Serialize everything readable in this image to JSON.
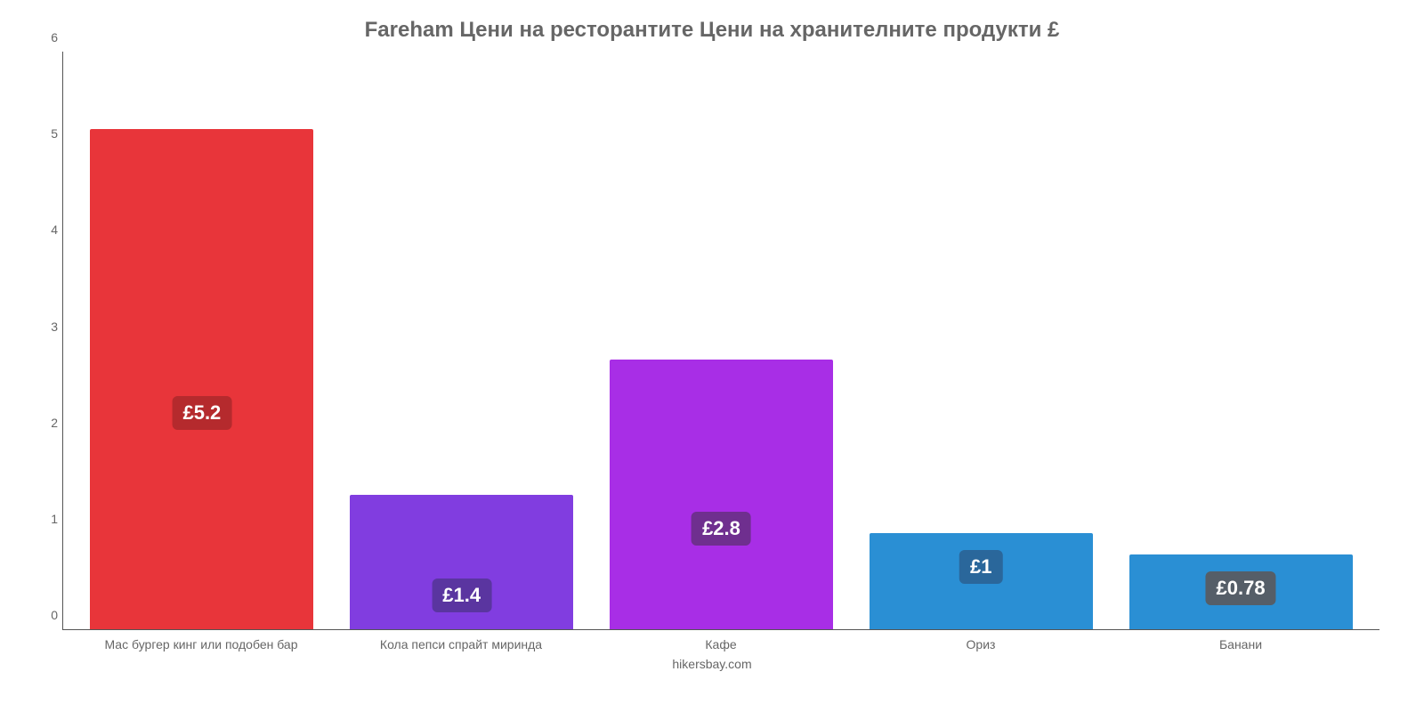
{
  "chart": {
    "type": "bar",
    "title": "Fareham Цени на ресторантите Цени на хранителните продукти £",
    "title_fontsize": 24,
    "title_color": "#666666",
    "background_color": "#ffffff",
    "axis_color": "#555555",
    "label_fontsize": 14,
    "label_color": "#666666",
    "ylim": [
      0,
      6
    ],
    "ytick_step": 1,
    "yticks": [
      "0",
      "1",
      "2",
      "3",
      "4",
      "5",
      "6"
    ],
    "bar_width_pct": 86,
    "categories": [
      "Мас бургер кинг или подобен бар",
      "Кола пепси спрайт миринда",
      "Кафе",
      "Ориз",
      "Банани"
    ],
    "values": [
      5.2,
      1.4,
      2.8,
      1.0,
      0.78
    ],
    "value_labels": [
      "£5.2",
      "£1.4",
      "£2.8",
      "£1",
      "£0.78"
    ],
    "bar_colors": [
      "#e8353a",
      "#813de0",
      "#a82ee6",
      "#2a8fd4",
      "#2a8fd4"
    ],
    "badge_colors": [
      "#b52a2d",
      "#5a35a0",
      "#6f2f8f",
      "#2a679b",
      "#555e68"
    ],
    "value_label_fontsize": 22,
    "value_label_color": "#ffffff"
  },
  "footer": {
    "credit": "hikersbay.com"
  }
}
